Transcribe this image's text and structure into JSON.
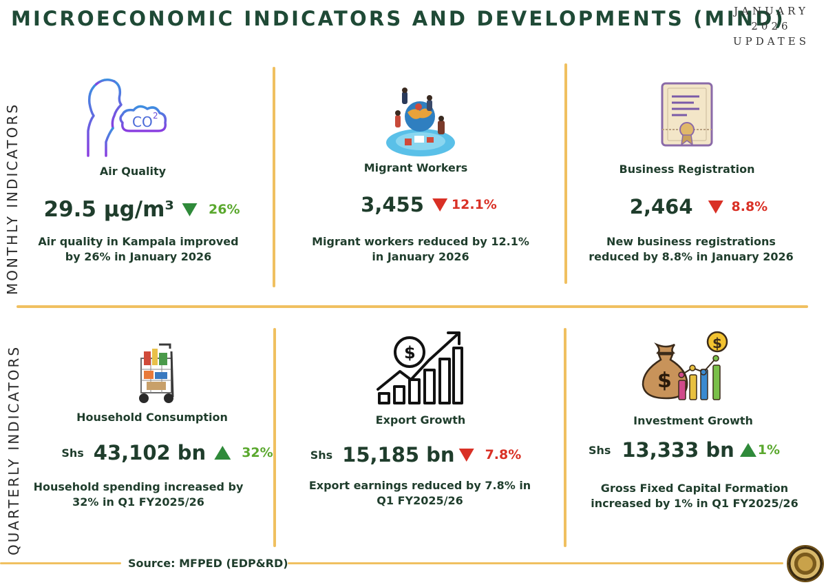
{
  "header": {
    "title": "MICROECONOMIC INDICATORS AND DEVELOPMENTS (MIND)",
    "updates_line1": "JANUARY",
    "updates_line2": "2026",
    "updates_line3": "UPDATES"
  },
  "sections": {
    "monthly_label": "MONTHLY INDICATORS",
    "quarterly_label": "QUARTERLY INDICATORS"
  },
  "monthly": [
    {
      "label": "Air Quality",
      "value": "29.5 µg/m³",
      "direction": "down",
      "change": "26%",
      "desc_line1": "Air quality in Kampala improved",
      "desc_line2": "by 26% in January 2026",
      "icon": "air-quality-icon"
    },
    {
      "label": "Migrant Workers",
      "value": "3,455",
      "direction": "down",
      "change": "12.1%",
      "desc_line1": "Migrant workers reduced by 12.1%",
      "desc_line2": "in January 2026",
      "icon": "migrant-workers-image"
    },
    {
      "label": "Business Registration",
      "value": "2,464",
      "direction": "down",
      "change": "8.8%",
      "desc_line1": "New business registrations",
      "desc_line2": "reduced by 8.8% in January 2026",
      "icon": "certificate-icon"
    }
  ],
  "quarterly": [
    {
      "label": "Household Consumption",
      "currency": "Shs",
      "value": "43,102 bn",
      "direction": "up",
      "change": "32%",
      "desc_line1": "Household spending increased by",
      "desc_line2": "32% in Q1 FY2025/26",
      "icon": "shopping-cart-icon"
    },
    {
      "label": "Export Growth",
      "currency": "Shs",
      "value": "15,185 bn",
      "direction": "down",
      "change": "7.8%",
      "desc_line1": "Export earnings reduced by 7.8% in",
      "desc_line2": "Q1 FY2025/26",
      "icon": "growth-chart-icon"
    },
    {
      "label": "Investment Growth",
      "currency": "Shs",
      "value": "13,333 bn",
      "direction": "up",
      "change": "1%",
      "desc_line1": "Gross Fixed Capital Formation",
      "desc_line2": "increased by 1% in Q1 FY2025/26",
      "icon": "money-bag-icon"
    }
  ],
  "footer": {
    "source": "Source: MFPED (EDP&RD)",
    "seal": "coat-of-arms-seal"
  },
  "colors": {
    "title": "#1f4a36",
    "divider": "#f0c060",
    "up": "#5aa82e",
    "down": "#d93025"
  }
}
